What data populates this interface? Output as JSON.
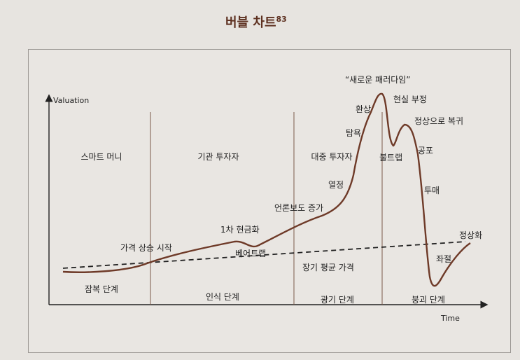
{
  "figure": {
    "title": "버블 차트",
    "title_footnote": "83",
    "axis": {
      "y_label": "Valuation",
      "x_label": "Time"
    },
    "phases": [
      "스마트 머니",
      "기관 투자자",
      "대중 투자자"
    ],
    "stages": [
      "잠복 단계",
      "인식 단계",
      "광기 단계",
      "붕괴 단계"
    ],
    "annotations": {
      "price_rise": "가격 상승 시작",
      "first_cash_out": "1차 현금화",
      "bear_trap": "베어트랩",
      "media": "언론보도 증가",
      "enthusiasm": "열정",
      "greed": "탐욕",
      "delusion": "환상",
      "new_paradigm": "“새로운 패러다임”",
      "denial": "현실 부정",
      "return_normal": "정상으로 복귀",
      "bull_trap": "불트랩",
      "fear": "공포",
      "capitulation": "투매",
      "despair": "좌절",
      "normalization": "정상화",
      "long_term_mean": "장기 평균 가격"
    },
    "colors": {
      "curve": "#6e3a28",
      "title": "#5e3121",
      "axis": "#222222",
      "dividers": "#7a5a4a"
    }
  }
}
